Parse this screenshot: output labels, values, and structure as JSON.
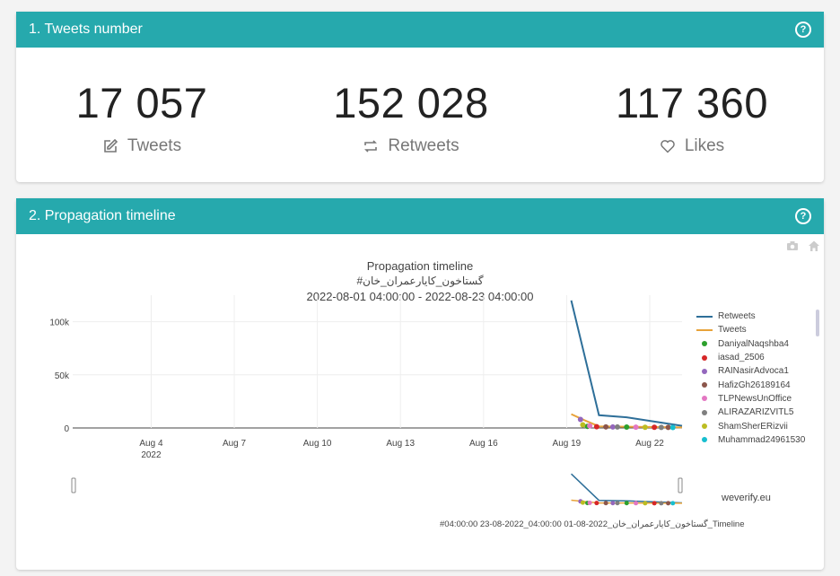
{
  "section1": {
    "title": "1. Tweets number",
    "stats": [
      {
        "value": "17 057",
        "label": "Tweets",
        "icon": "edit-icon"
      },
      {
        "value": "152 028",
        "label": "Retweets",
        "icon": "retweet-icon"
      },
      {
        "value": "117 360",
        "label": "Likes",
        "icon": "heart-icon"
      }
    ]
  },
  "section2": {
    "title": "2. Propagation timeline",
    "watermark": "weverify.eu",
    "caption": "#04:00:00 23-08-2022_04:00:00 01-08-2022_گستاخون_کایارعمران_خان_Timeline"
  },
  "colors": {
    "header": "#26a9ad",
    "retweets": "#2e6f99",
    "tweets": "#e8a33a"
  },
  "chart_data": {
    "type": "line",
    "title": "Propagation timeline",
    "subtitle": "گستاخون_کایارعمران_خان#",
    "date_range": "2022-08-01 04:00:00 - 2022-08-23 04:00:00",
    "x_ticks": [
      {
        "date": "2022-08-04",
        "label": "Aug 4",
        "sublabel": "2022"
      },
      {
        "date": "2022-08-07",
        "label": "Aug 7"
      },
      {
        "date": "2022-08-10",
        "label": "Aug 10"
      },
      {
        "date": "2022-08-13",
        "label": "Aug 13"
      },
      {
        "date": "2022-08-16",
        "label": "Aug 16"
      },
      {
        "date": "2022-08-19",
        "label": "Aug 19"
      },
      {
        "date": "2022-08-22",
        "label": "Aug 22"
      }
    ],
    "y_ticks": [
      {
        "value": 0,
        "label": "0"
      },
      {
        "value": 50000,
        "label": "50k"
      },
      {
        "value": 100000,
        "label": "100k"
      }
    ],
    "xlim": [
      "2022-08-01 04:00",
      "2022-08-23 04:00"
    ],
    "ylim": [
      0,
      125000
    ],
    "series": [
      {
        "name": "Retweets",
        "type": "line",
        "color": "#2e6f99",
        "points": [
          [
            "2022-08-19 04:00",
            120000
          ],
          [
            "2022-08-20 04:00",
            12000
          ],
          [
            "2022-08-21 04:00",
            10000
          ],
          [
            "2022-08-22 04:00",
            6000
          ],
          [
            "2022-08-23 04:00",
            2000
          ]
        ]
      },
      {
        "name": "Tweets",
        "type": "line",
        "color": "#e8a33a",
        "points": [
          [
            "2022-08-19 04:00",
            13000
          ],
          [
            "2022-08-19 16:00",
            7000
          ],
          [
            "2022-08-20 04:00",
            1500
          ],
          [
            "2022-08-21 04:00",
            1200
          ],
          [
            "2022-08-22 04:00",
            800
          ],
          [
            "2022-08-23 04:00",
            500
          ]
        ]
      },
      {
        "name": "DaniyalNaqshba4",
        "type": "markers",
        "color": "#2ca02c",
        "points": [
          [
            "2022-08-19 18:00",
            1500
          ],
          [
            "2022-08-21 04:00",
            800
          ]
        ]
      },
      {
        "name": "iasad_2506",
        "type": "markers",
        "color": "#d62728",
        "points": [
          [
            "2022-08-20 02:00",
            1200
          ],
          [
            "2022-08-22 04:00",
            600
          ]
        ]
      },
      {
        "name": "RAINasirAdvoca1",
        "type": "markers",
        "color": "#9467bd",
        "points": [
          [
            "2022-08-19 12:00",
            8000
          ],
          [
            "2022-08-20 16:00",
            900
          ]
        ]
      },
      {
        "name": "HafizGh26189164",
        "type": "markers",
        "color": "#8c564b",
        "points": [
          [
            "2022-08-20 10:00",
            1000
          ],
          [
            "2022-08-22 16:00",
            500
          ]
        ]
      },
      {
        "name": "TLPNewsUnOffice",
        "type": "markers",
        "color": "#e377c2",
        "points": [
          [
            "2022-08-21 12:00",
            700
          ],
          [
            "2022-08-19 20:00",
            2000
          ]
        ]
      },
      {
        "name": "ALIRAZARIZVITL5",
        "type": "markers",
        "color": "#7f7f7f",
        "points": [
          [
            "2022-08-20 20:00",
            900
          ],
          [
            "2022-08-22 10:00",
            500
          ]
        ]
      },
      {
        "name": "ShamSherERizvii",
        "type": "markers",
        "color": "#bcbd22",
        "points": [
          [
            "2022-08-21 20:00",
            600
          ],
          [
            "2022-08-19 14:00",
            3000
          ]
        ]
      },
      {
        "name": "Muhammad24961530",
        "type": "markers",
        "color": "#17becf",
        "points": [
          [
            "2022-08-22 20:00",
            400
          ]
        ]
      }
    ]
  }
}
